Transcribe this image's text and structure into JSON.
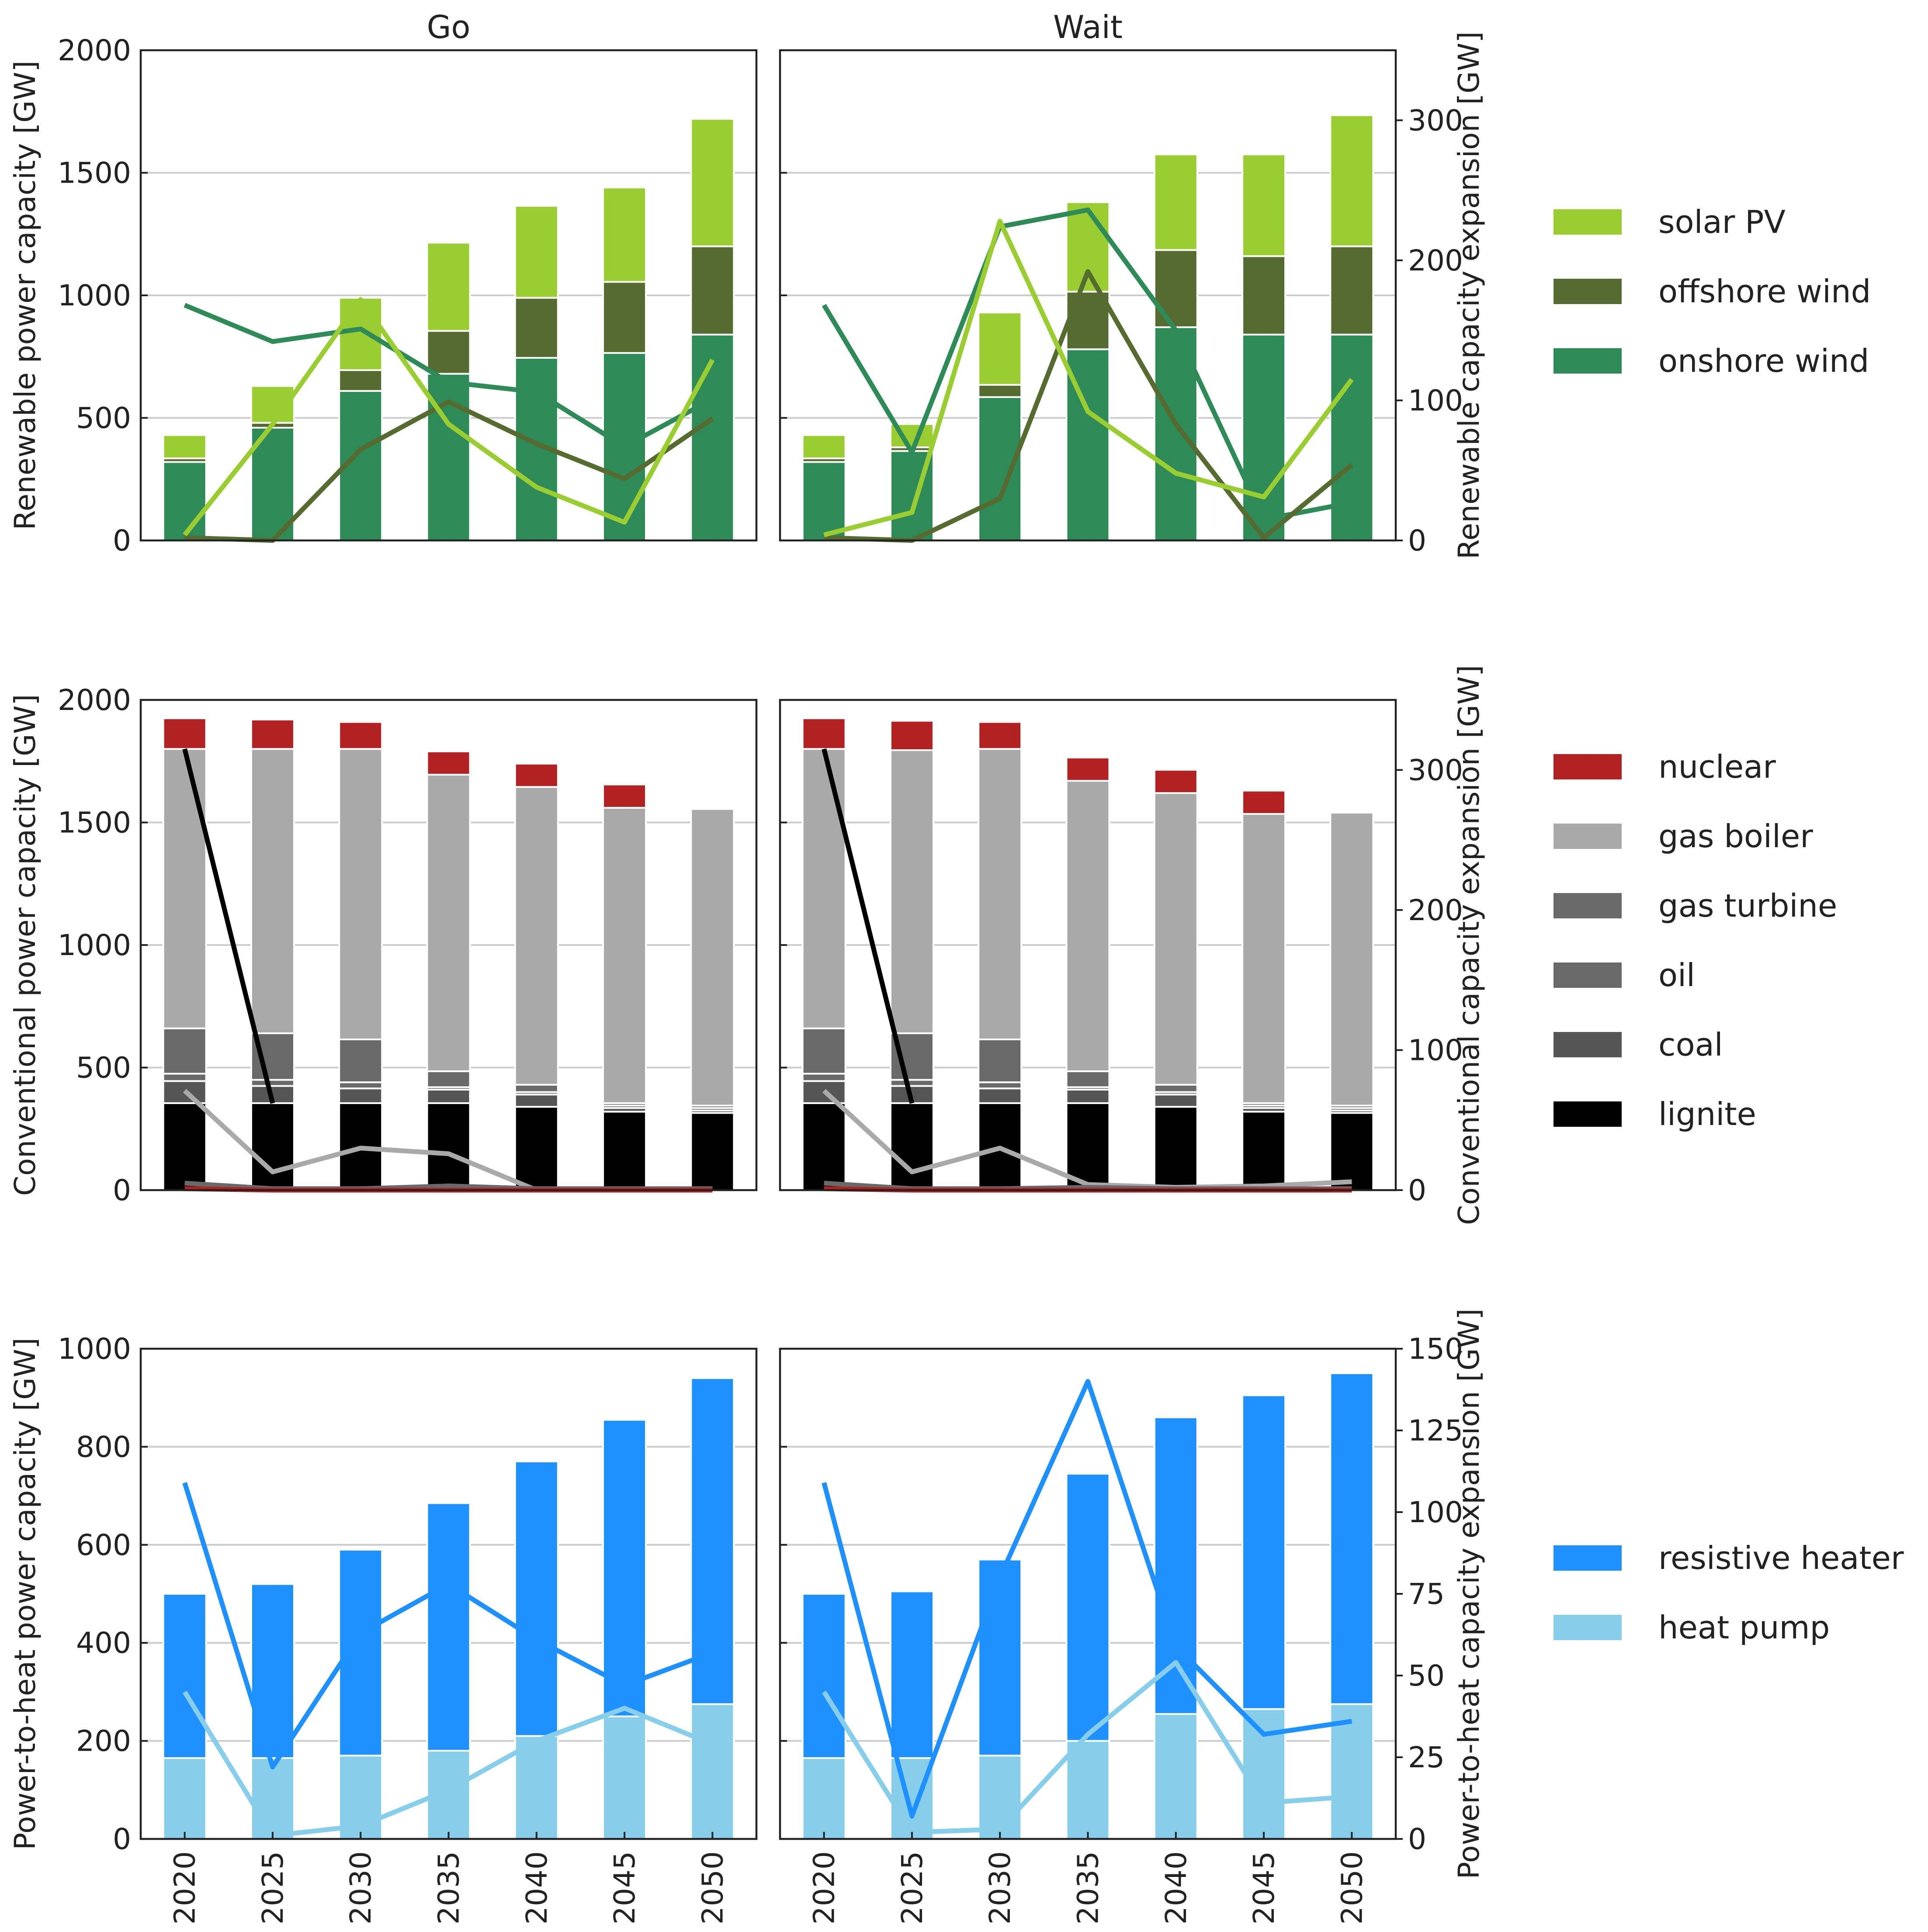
{
  "columns": [
    "Go",
    "Wait"
  ],
  "x_categories": [
    "2020",
    "2025",
    "2030",
    "2035",
    "2040",
    "2045",
    "2050"
  ],
  "colors": {
    "solar PV": "#9acd32",
    "offshore wind": "#556b2f",
    "onshore wind": "#2e8b57",
    "nuclear": "#b22222",
    "gas boiler": "#a9a9a9",
    "gas turbine": "#696969",
    "oil": "#696969",
    "coal": "#555555",
    "lignite": "#000000",
    "resistive heater": "#1e90ff",
    "heat pump": "#87ceeb"
  },
  "chart_data": [
    {
      "type": "bar",
      "stacked": true,
      "row": "renewable",
      "title": "Go",
      "categories": [
        "2020",
        "2025",
        "2030",
        "2035",
        "2040",
        "2045",
        "2050"
      ],
      "ylabel": "Renewable power capacity [GW]",
      "ylim": [
        0,
        2000
      ],
      "yticks": [
        0,
        500,
        1000,
        1500,
        2000
      ],
      "grid": true,
      "series": [
        {
          "name": "onshore wind",
          "values": [
            320,
            460,
            610,
            680,
            745,
            765,
            840
          ]
        },
        {
          "name": "offshore wind",
          "values": [
            15,
            20,
            85,
            175,
            245,
            290,
            360
          ]
        },
        {
          "name": "solar PV",
          "values": [
            95,
            150,
            295,
            360,
            375,
            385,
            520
          ]
        }
      ],
      "secondary": {
        "type": "line",
        "ylim": [
          0,
          350
        ],
        "series": [
          {
            "name": "onshore wind",
            "values": [
              168,
              142,
              151,
              113,
              106,
              67,
              101
            ]
          },
          {
            "name": "offshore wind",
            "values": [
              2,
              0,
              65,
              99,
              69,
              44,
              87
            ]
          },
          {
            "name": "solar PV",
            "values": [
              4,
              83,
              172,
              83,
              38,
              13,
              129
            ]
          }
        ]
      }
    },
    {
      "type": "bar",
      "stacked": true,
      "row": "renewable",
      "title": "Wait",
      "categories": [
        "2020",
        "2025",
        "2030",
        "2035",
        "2040",
        "2045",
        "2050"
      ],
      "ylim": [
        0,
        2000
      ],
      "grid": true,
      "series": [
        {
          "name": "onshore wind",
          "values": [
            320,
            365,
            585,
            780,
            870,
            840,
            840
          ]
        },
        {
          "name": "offshore wind",
          "values": [
            15,
            15,
            50,
            235,
            315,
            320,
            360
          ]
        },
        {
          "name": "solar PV",
          "values": [
            95,
            95,
            295,
            365,
            390,
            415,
            535
          ]
        }
      ],
      "secondary": {
        "type": "line",
        "ylim": [
          0,
          350
        ],
        "yticks": [
          0,
          100,
          200,
          300
        ],
        "ylabel": "Renewable capacity expansion [GW]",
        "series": [
          {
            "name": "onshore wind",
            "values": [
              168,
              63,
              224,
              236,
              150,
              15,
              27
            ]
          },
          {
            "name": "offshore wind",
            "values": [
              2,
              0,
              30,
              192,
              83,
              2,
              54
            ]
          },
          {
            "name": "solar PV",
            "values": [
              4,
              20,
              228,
              92,
              48,
              31,
              115
            ]
          }
        ]
      }
    },
    {
      "type": "bar",
      "stacked": true,
      "row": "conventional",
      "title": "",
      "categories": [
        "2020",
        "2025",
        "2030",
        "2035",
        "2040",
        "2045",
        "2050"
      ],
      "ylabel": "Conventional power capacity [GW]",
      "ylim": [
        0,
        2000
      ],
      "yticks": [
        0,
        500,
        1000,
        1500,
        2000
      ],
      "grid": true,
      "series": [
        {
          "name": "lignite",
          "values": [
            355,
            355,
            355,
            355,
            340,
            320,
            315
          ]
        },
        {
          "name": "coal",
          "values": [
            90,
            70,
            60,
            55,
            50,
            15,
            10
          ]
        },
        {
          "name": "oil",
          "values": [
            30,
            25,
            25,
            10,
            10,
            10,
            10
          ]
        },
        {
          "name": "gas turbine",
          "values": [
            185,
            190,
            175,
            65,
            30,
            10,
            10
          ]
        },
        {
          "name": "gas boiler",
          "values": [
            1140,
            1160,
            1185,
            1210,
            1215,
            1205,
            1210
          ]
        },
        {
          "name": "nuclear",
          "values": [
            125,
            120,
            110,
            95,
            95,
            95,
            0
          ]
        }
      ],
      "secondary": {
        "type": "line",
        "ylim": [
          0,
          350
        ],
        "series": [
          {
            "name": "lignite",
            "values": [
              315,
              62,
              null,
              null,
              null,
              null,
              null
            ]
          },
          {
            "name": "gas boiler",
            "values": [
              71,
              13,
              30,
              26,
              0,
              null,
              null
            ]
          },
          {
            "name": "gas turbine",
            "values": [
              5,
              1,
              1,
              3,
              1,
              1,
              1
            ]
          },
          {
            "name": "nuclear",
            "values": [
              1,
              0,
              0,
              0,
              0,
              0,
              0
            ]
          }
        ]
      }
    },
    {
      "type": "bar",
      "stacked": true,
      "row": "conventional",
      "title": "",
      "categories": [
        "2020",
        "2025",
        "2030",
        "2035",
        "2040",
        "2045",
        "2050"
      ],
      "ylim": [
        0,
        2000
      ],
      "grid": true,
      "series": [
        {
          "name": "lignite",
          "values": [
            355,
            355,
            355,
            355,
            340,
            320,
            315
          ]
        },
        {
          "name": "coal",
          "values": [
            90,
            70,
            60,
            55,
            50,
            15,
            10
          ]
        },
        {
          "name": "oil",
          "values": [
            30,
            25,
            25,
            10,
            10,
            10,
            10
          ]
        },
        {
          "name": "gas turbine",
          "values": [
            185,
            190,
            175,
            65,
            30,
            10,
            10
          ]
        },
        {
          "name": "gas boiler",
          "values": [
            1140,
            1155,
            1185,
            1185,
            1190,
            1180,
            1195
          ]
        },
        {
          "name": "nuclear",
          "values": [
            125,
            120,
            110,
            95,
            95,
            95,
            0
          ]
        }
      ],
      "secondary": {
        "type": "line",
        "ylim": [
          0,
          350
        ],
        "yticks": [
          0,
          100,
          200,
          300
        ],
        "ylabel": "Conventional capacity expansion [GW]",
        "series": [
          {
            "name": "lignite",
            "values": [
              315,
              62,
              null,
              null,
              null,
              null,
              null
            ]
          },
          {
            "name": "gas boiler",
            "values": [
              71,
              13,
              30,
              4,
              2,
              3,
              6
            ]
          },
          {
            "name": "gas turbine",
            "values": [
              5,
              1,
              1,
              2,
              1,
              1,
              1
            ]
          },
          {
            "name": "nuclear",
            "values": [
              1,
              0,
              0,
              0,
              0,
              0,
              0
            ]
          }
        ]
      }
    },
    {
      "type": "bar",
      "stacked": true,
      "row": "power-to-heat",
      "title": "",
      "categories": [
        "2020",
        "2025",
        "2030",
        "2035",
        "2040",
        "2045",
        "2050"
      ],
      "ylabel": "Power-to-heat power capacity [GW]",
      "ylim": [
        0,
        1000
      ],
      "yticks": [
        0,
        200,
        400,
        600,
        800,
        1000
      ],
      "grid": true,
      "series": [
        {
          "name": "heat pump",
          "values": [
            165,
            165,
            170,
            180,
            210,
            250,
            275
          ]
        },
        {
          "name": "resistive heater",
          "values": [
            335,
            355,
            420,
            505,
            560,
            605,
            665
          ]
        }
      ],
      "secondary": {
        "type": "line",
        "ylim": [
          0,
          150
        ],
        "series": [
          {
            "name": "resistive heater",
            "values": [
              109,
              22,
              63,
              78,
              61,
              47,
              57
            ]
          },
          {
            "name": "heat pump",
            "values": [
              45,
              1,
              4,
              15,
              30,
              40,
              29
            ]
          }
        ]
      }
    },
    {
      "type": "bar",
      "stacked": true,
      "row": "power-to-heat",
      "title": "",
      "categories": [
        "2020",
        "2025",
        "2030",
        "2035",
        "2040",
        "2045",
        "2050"
      ],
      "ylim": [
        0,
        1000
      ],
      "grid": true,
      "series": [
        {
          "name": "heat pump",
          "values": [
            165,
            165,
            170,
            200,
            255,
            265,
            275
          ]
        },
        {
          "name": "resistive heater",
          "values": [
            335,
            340,
            400,
            545,
            605,
            640,
            675
          ]
        }
      ],
      "secondary": {
        "type": "line",
        "ylim": [
          0,
          150
        ],
        "yticks": [
          0,
          25,
          50,
          75,
          100,
          125,
          150
        ],
        "ylabel": "Power-to-heat capacity expansion [GW]",
        "series": [
          {
            "name": "resistive heater",
            "values": [
              109,
              7,
              80,
              140,
              59,
              32,
              36
            ]
          },
          {
            "name": "heat pump",
            "values": [
              45,
              2,
              3,
              32,
              54,
              11,
              13
            ]
          }
        ]
      }
    }
  ],
  "legends": [
    {
      "row": "renewable",
      "items": [
        "solar PV",
        "offshore wind",
        "onshore wind"
      ]
    },
    {
      "row": "conventional",
      "items": [
        "nuclear",
        "gas boiler",
        "gas turbine",
        "oil",
        "coal",
        "lignite"
      ]
    },
    {
      "row": "power-to-heat",
      "items": [
        "resistive heater",
        "heat pump"
      ]
    }
  ]
}
